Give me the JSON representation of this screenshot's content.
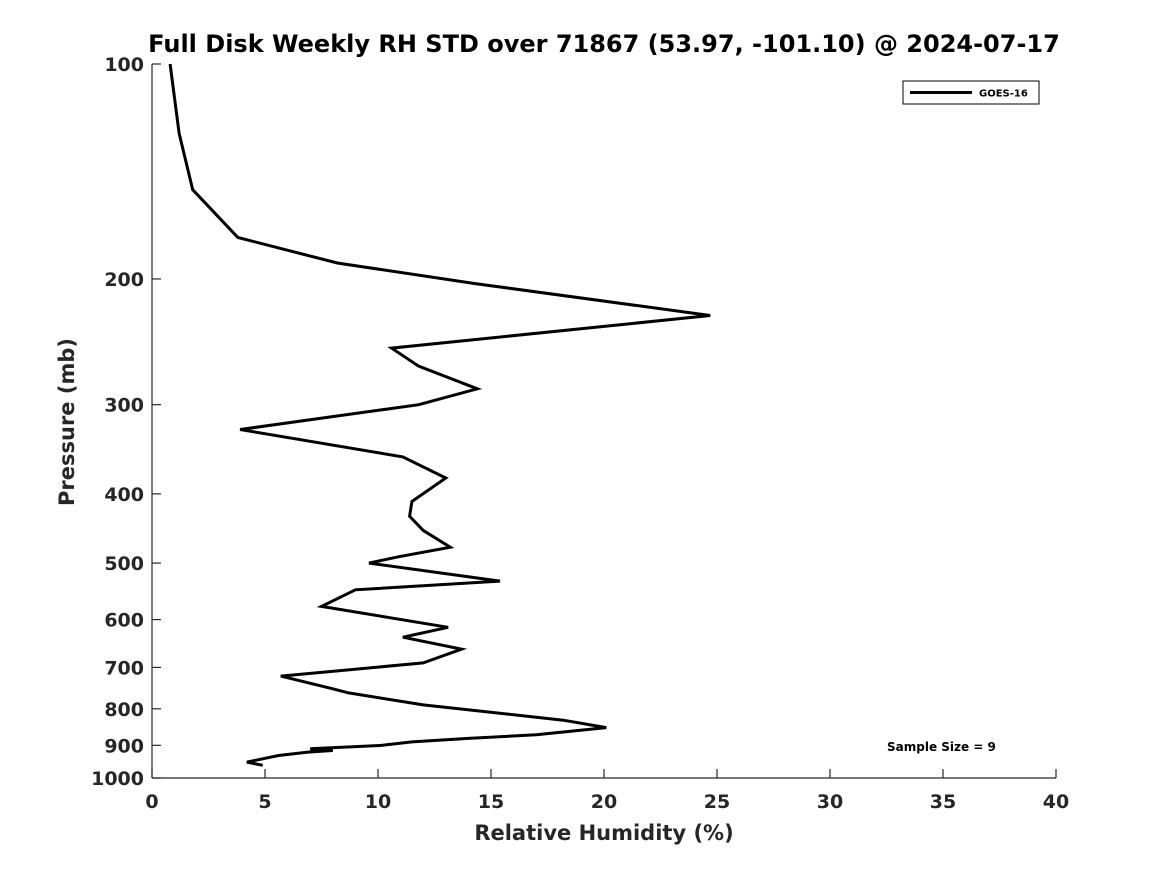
{
  "chart_data": {
    "type": "line",
    "title": "Full Disk Weekly RH STD over 71867 (53.97, -101.10) @ 2024-07-17",
    "xlabel": "Relative Humidity (%)",
    "ylabel": "Pressure (mb)",
    "xlim": [
      0,
      40
    ],
    "ylim": [
      100,
      1000
    ],
    "yscale": "log",
    "yreversed": true,
    "xticks": [
      0,
      5,
      10,
      15,
      20,
      25,
      30,
      35,
      40
    ],
    "yticks": [
      100,
      200,
      300,
      400,
      500,
      600,
      700,
      800,
      900,
      1000
    ],
    "grid": false,
    "legend_position": "top-right",
    "annotation": "Sample Size = 9",
    "color": "#000000",
    "series": [
      {
        "name": "GOES-16",
        "x": [
          0.8,
          1.2,
          1.8,
          3.8,
          8.2,
          14.3,
          24.7,
          10.6,
          11.8,
          14.4,
          11.8,
          3.9,
          11.1,
          13.0,
          11.5,
          11.4,
          12.0,
          13.2,
          10.9,
          9.6,
          15.4,
          9.0,
          7.5,
          13.1,
          11.1,
          13.7,
          12.0,
          5.7,
          8.0,
          8.7,
          12.0,
          18.2,
          20.1,
          17.0,
          14.0,
          11.5,
          10.2,
          7.0,
          8.0,
          6.9,
          5.6,
          4.2,
          4.9
        ],
        "y": [
          100,
          125,
          150,
          175,
          190,
          203,
          225,
          250,
          265,
          285,
          300,
          325,
          355,
          380,
          410,
          430,
          450,
          475,
          490,
          500,
          530,
          545,
          575,
          615,
          635,
          660,
          690,
          720,
          750,
          760,
          790,
          830,
          850,
          870,
          880,
          890,
          900,
          910,
          915,
          920,
          930,
          950,
          960
        ]
      }
    ]
  }
}
